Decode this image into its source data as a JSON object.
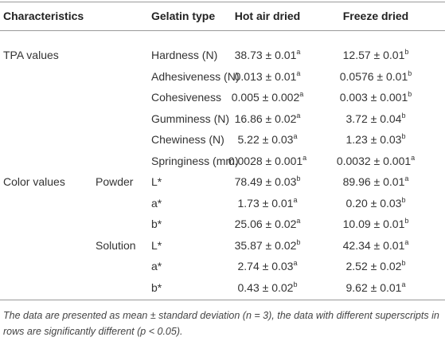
{
  "table": {
    "header": [
      "Characteristics",
      "Gelatin type",
      "Hot air dried",
      "Freeze dried"
    ],
    "rows": [
      {
        "group": "TPA values",
        "label": "Hardness (N)",
        "hot": {
          "value": "38.73 ± 0.01",
          "sup": "a"
        },
        "freeze": {
          "value": "12.57 ± 0.01",
          "sup": "b"
        }
      },
      {
        "label": "Adhesiveness (N)",
        "hot": {
          "value": "0.013 ± 0.01",
          "sup": "a"
        },
        "freeze": {
          "value": "0.0576 ± 0.01",
          "sup": "b"
        }
      },
      {
        "label": "Cohesiveness",
        "hot": {
          "value": "0.005 ± 0.002",
          "sup": "a"
        },
        "freeze": {
          "value": "0.003 ± 0.001",
          "sup": "b"
        }
      },
      {
        "label": "Gumminess (N)",
        "hot": {
          "value": "16.86 ± 0.02",
          "sup": "a"
        },
        "freeze": {
          "value": "3.72 ± 0.04",
          "sup": "b"
        }
      },
      {
        "label": "Chewiness (N)",
        "hot": {
          "value": "5.22 ± 0.03",
          "sup": "a"
        },
        "freeze": {
          "value": "1.23 ± 0.03",
          "sup": "b"
        }
      },
      {
        "label": "Springiness (mm)",
        "hot": {
          "value": "0.0028 ± 0.001",
          "sup": "a"
        },
        "freeze": {
          "value": "0.0032 ± 0.001",
          "sup": "a"
        }
      },
      {
        "group": "Color values",
        "subgroup": "Powder",
        "label": "L*",
        "hot": {
          "value": "78.49 ± 0.03",
          "sup": "b"
        },
        "freeze": {
          "value": "89.96 ± 0.01",
          "sup": "a"
        }
      },
      {
        "label": "a*",
        "hot": {
          "value": "1.73 ± 0.01",
          "sup": "a"
        },
        "freeze": {
          "value": "0.20 ± 0.03",
          "sup": "b"
        }
      },
      {
        "label": "b*",
        "hot": {
          "value": "25.06 ± 0.02",
          "sup": "a"
        },
        "freeze": {
          "value": "10.09 ± 0.01",
          "sup": "b"
        }
      },
      {
        "subgroup": "Solution",
        "label": "L*",
        "hot": {
          "value": "35.87 ± 0.02",
          "sup": "b"
        },
        "freeze": {
          "value": "42.34 ± 0.01",
          "sup": "a"
        }
      },
      {
        "label": "a*",
        "hot": {
          "value": "2.74 ± 0.03",
          "sup": "a"
        },
        "freeze": {
          "value": "2.52 ± 0.02",
          "sup": "b"
        }
      },
      {
        "label": "b*",
        "hot": {
          "value": "0.43 ± 0.02",
          "sup": "b"
        },
        "freeze": {
          "value": "9.62 ± 0.01",
          "sup": "a"
        }
      }
    ]
  },
  "footnote": "The data are presented as mean ± standard deviation (n = 3), the data with different superscripts in rows are significantly different (p < 0.05)."
}
